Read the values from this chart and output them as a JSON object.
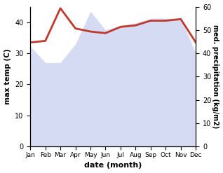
{
  "months": [
    "Jan",
    "Feb",
    "Mar",
    "Apr",
    "May",
    "Jun",
    "Jul",
    "Aug",
    "Sep",
    "Oct",
    "Nov",
    "Dec"
  ],
  "month_indices": [
    1,
    2,
    3,
    4,
    5,
    6,
    7,
    8,
    9,
    10,
    11,
    12
  ],
  "temperature": [
    33.5,
    34.0,
    44.5,
    38.0,
    37.0,
    36.5,
    38.5,
    39.0,
    40.5,
    40.5,
    41.0,
    33.5
  ],
  "precipitation_kg": [
    43,
    36,
    36,
    44,
    58,
    50,
    52,
    53,
    55,
    55,
    55,
    40
  ],
  "temp_color": "#c0392b",
  "precip_fill_color": "#c5cdf0",
  "ylabel_left": "max temp (C)",
  "ylabel_right": "med. precipitation (kg/m2)",
  "xlabel": "date (month)",
  "ylim_left": [
    0,
    45
  ],
  "ylim_right": [
    0,
    60
  ],
  "yticks_left": [
    0,
    10,
    20,
    30,
    40
  ],
  "yticks_right": [
    0,
    10,
    20,
    30,
    40,
    50,
    60
  ],
  "bg_color": "#ffffff",
  "line_width": 2.0,
  "fill_alpha": 0.7
}
